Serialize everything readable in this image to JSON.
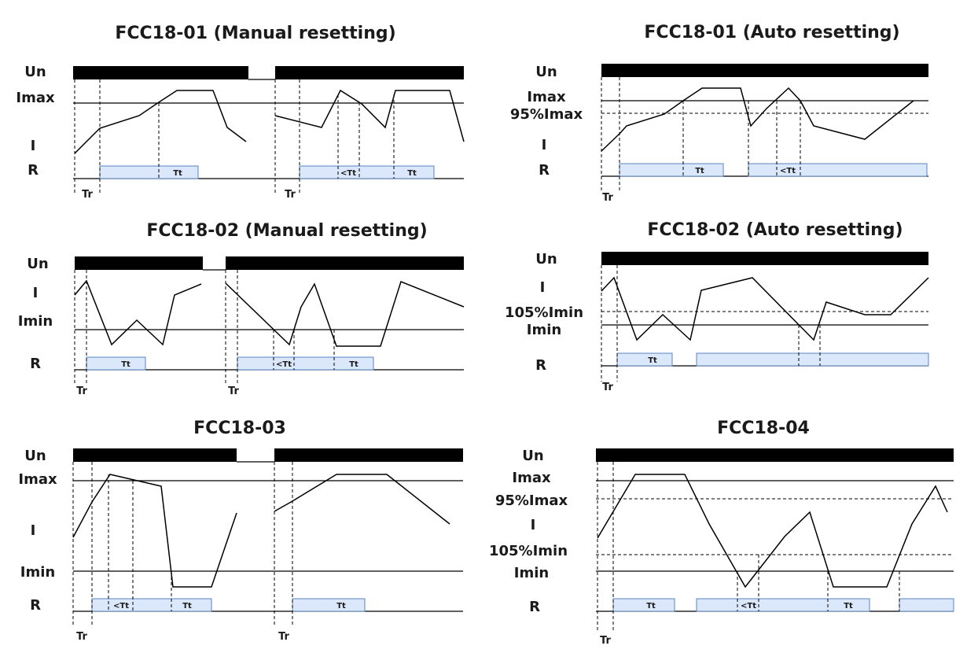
{
  "panels": [
    {
      "title": "FCC18-01 (Manual resetting)",
      "labels": [
        "Un",
        "Imax",
        "I",
        "R"
      ],
      "timer_labels": [
        "Tt",
        "<Tt",
        "Tt"
      ],
      "tr_labels": [
        "Tr",
        "Tr"
      ]
    },
    {
      "title": "FCC18-01 (Auto resetting)",
      "labels": [
        "Un",
        "Imax",
        "95%Imax",
        "I",
        "R"
      ],
      "timer_labels": [
        "Tt",
        "<Tt"
      ],
      "tr_labels": [
        "Tr"
      ]
    },
    {
      "title": "FCC18-02 (Manual resetting)",
      "labels": [
        "Un",
        "I",
        "Imin",
        "R"
      ],
      "timer_labels": [
        "Tt",
        "<Tt",
        "Tt"
      ],
      "tr_labels": [
        "Tr",
        "Tr"
      ]
    },
    {
      "title": "FCC18-02 (Auto resetting)",
      "labels": [
        "Un",
        "I",
        "105%Imin",
        "Imin",
        "R"
      ],
      "timer_labels": [
        "Tt"
      ],
      "tr_labels": [
        "Tr"
      ]
    },
    {
      "title": "FCC18-03",
      "labels": [
        "Un",
        "Imax",
        "I",
        "Imin",
        "R"
      ],
      "timer_labels": [
        "<Tt",
        "Tt",
        "Tt"
      ],
      "tr_labels": [
        "Tr",
        "Tr"
      ]
    },
    {
      "title": "FCC18-04",
      "labels": [
        "Un",
        "Imax",
        "95%Imax",
        "I",
        "105%Imin",
        "Imin",
        "R"
      ],
      "timer_labels": [
        "Tt",
        "<Tt",
        "Tt"
      ],
      "tr_labels": [
        "Tr"
      ]
    }
  ]
}
